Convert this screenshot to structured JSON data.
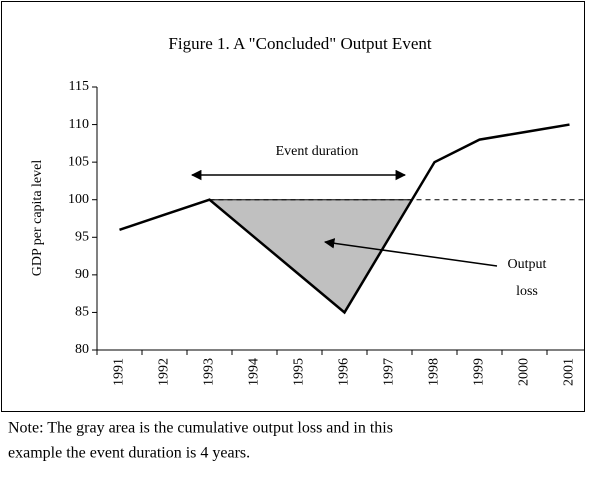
{
  "chart_data": {
    "type": "line",
    "title": "Figure 1. A \"Concluded\" Output Event",
    "y_label": "GDP per capita level",
    "categories": [
      "1991",
      "1992",
      "1993",
      "1994",
      "1995",
      "1996",
      "1997",
      "1998",
      "1999",
      "2000",
      "2001"
    ],
    "series": [
      {
        "name": "GDP per capita level",
        "color": "#000000",
        "values": [
          96,
          98,
          100,
          95,
          90,
          85,
          95,
          105,
          108,
          109,
          110
        ]
      }
    ],
    "reference_line": 100,
    "area_color": "#c0c0c0",
    "ylim": [
      80,
      115
    ],
    "yticks": [
      80,
      85,
      90,
      95,
      100,
      105,
      110,
      115
    ],
    "annotations": [
      "Event duration",
      "Output",
      "loss"
    ],
    "note": [
      "Note: The gray area is the cumulative output loss and in this",
      "example the event duration is 4 years."
    ]
  }
}
